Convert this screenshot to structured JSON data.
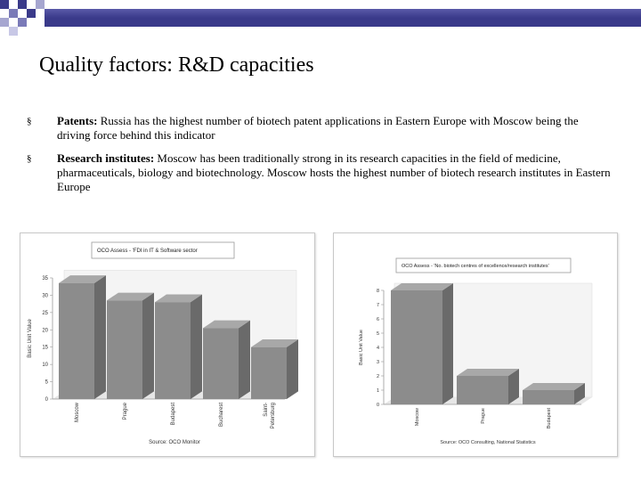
{
  "slide": {
    "title": "Quality factors: R&D capacities",
    "bullets": [
      {
        "label": "Patents:",
        "text": " Russia has the highest number of biotech patent applications in Eastern Europe with Moscow being the driving force behind this indicator"
      },
      {
        "label": "Research institutes:",
        "text": " Moscow has been traditionally strong in its research capacities in the field of medicine, pharmaceuticals, biology and biotechnology. Moscow hosts the highest number of biotech research institutes in Eastern Europe"
      }
    ],
    "bullet_glyph": "§",
    "colors": {
      "header_bar": "#3a3a8a",
      "bar_face": "#8c8c8c",
      "bar_side": "#6a6a6a",
      "bar_top": "#a8a8a8"
    }
  },
  "chart_data": [
    {
      "type": "bar",
      "title": "OCO Assess - 'FDI in IT & Software sector",
      "ylabel": "Basic Unit Value",
      "source": "Source: OCO Monitor",
      "categories": [
        "Moscow",
        "Prague",
        "Budapest",
        "Bucharest",
        "Saint-Petersburg"
      ],
      "category_labels": [
        [
          "Moscow"
        ],
        [
          "Prague"
        ],
        [
          "Budapest"
        ],
        [
          "Bucharest"
        ],
        [
          "Saint-",
          "Petersburg"
        ]
      ],
      "values": [
        33.5,
        28.5,
        28,
        20.5,
        15
      ],
      "ylim": [
        0,
        35
      ],
      "yticks": [
        "0",
        "5",
        "10",
        "15",
        "20",
        "25",
        "30",
        "35"
      ],
      "grid": false
    },
    {
      "type": "bar",
      "title": "OCO Assess - 'No. biotech centres of excellence/research institutes'",
      "ylabel": "Basic Unit Value",
      "source": "Source: OCO Consulting, National Statistics",
      "categories": [
        "Moscow",
        "Prague",
        "Budapest"
      ],
      "category_labels": [
        [
          "Moscow"
        ],
        [
          "Prague"
        ],
        [
          "Budapest"
        ]
      ],
      "values": [
        8,
        2,
        1
      ],
      "ylim": [
        0,
        8
      ],
      "yticks": [
        "0",
        "1",
        "2",
        "3",
        "4",
        "5",
        "6",
        "7",
        "8"
      ],
      "grid": false
    }
  ]
}
